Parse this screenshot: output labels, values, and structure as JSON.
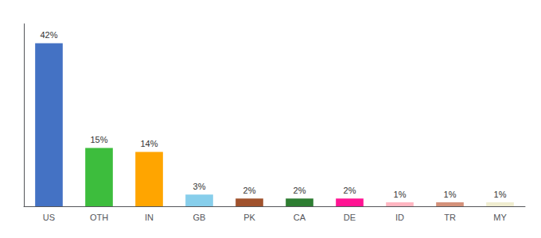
{
  "chart_data": {
    "type": "bar",
    "categories": [
      "US",
      "OTH",
      "IN",
      "GB",
      "PK",
      "CA",
      "DE",
      "ID",
      "TR",
      "MY"
    ],
    "values": [
      42,
      15,
      14,
      3,
      2,
      2,
      2,
      1,
      1,
      1
    ],
    "value_labels": [
      "42%",
      "15%",
      "14%",
      "3%",
      "2%",
      "2%",
      "2%",
      "1%",
      "1%",
      "1%"
    ],
    "colors": [
      "#4472C4",
      "#3DBD3D",
      "#FFA500",
      "#87CEEB",
      "#A0522D",
      "#2E7D32",
      "#FF1493",
      "#FFB6C1",
      "#D4917A",
      "#F0EDD0"
    ],
    "ylim": [
      0,
      47
    ],
    "data_labels": true,
    "tick_labels": "x",
    "grid": false
  }
}
